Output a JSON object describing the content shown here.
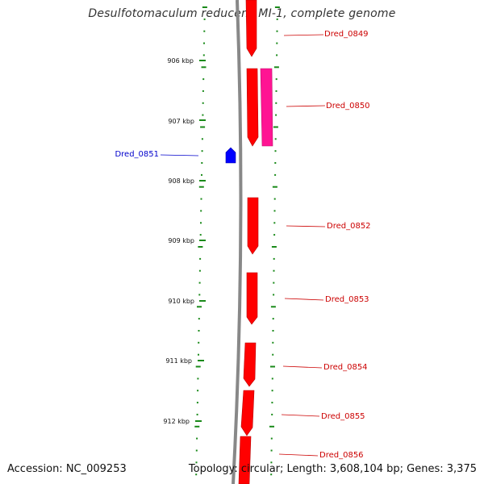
{
  "title": "Desulfotomaculum reducens MI-1, complete genome",
  "accession": "Accession: NC_009253",
  "topology": "Topology: circular; Length: 3,608,104 bp; Genes: 3,375",
  "colors": {
    "forward_gene": "#ff0000",
    "forward_gene_dark": "#b80000",
    "pink_gene": "#ff1493",
    "reverse_gene": "#0000ff",
    "reverse_label": "#0000cc",
    "forward_label": "#cc0000",
    "tick": "#1a8a1a",
    "backbone": "#888888"
  },
  "kbp_ticks": [
    {
      "label": "906 kbp"
    },
    {
      "label": "907 kbp"
    },
    {
      "label": "908 kbp"
    },
    {
      "label": "909 kbp"
    },
    {
      "label": "910 kbp"
    },
    {
      "label": "911 kbp"
    },
    {
      "label": "912 kbp"
    }
  ],
  "genes": [
    {
      "name": "Dred_0849",
      "strand": "forward"
    },
    {
      "name": "Dred_0850",
      "strand": "forward"
    },
    {
      "name": "Dred_0851",
      "strand": "reverse"
    },
    {
      "name": "Dred_0852",
      "strand": "forward"
    },
    {
      "name": "Dred_0853",
      "strand": "forward"
    },
    {
      "name": "Dred_0854",
      "strand": "forward"
    },
    {
      "name": "Dred_0855",
      "strand": "forward"
    },
    {
      "name": "Dred_0856",
      "strand": "forward"
    }
  ]
}
